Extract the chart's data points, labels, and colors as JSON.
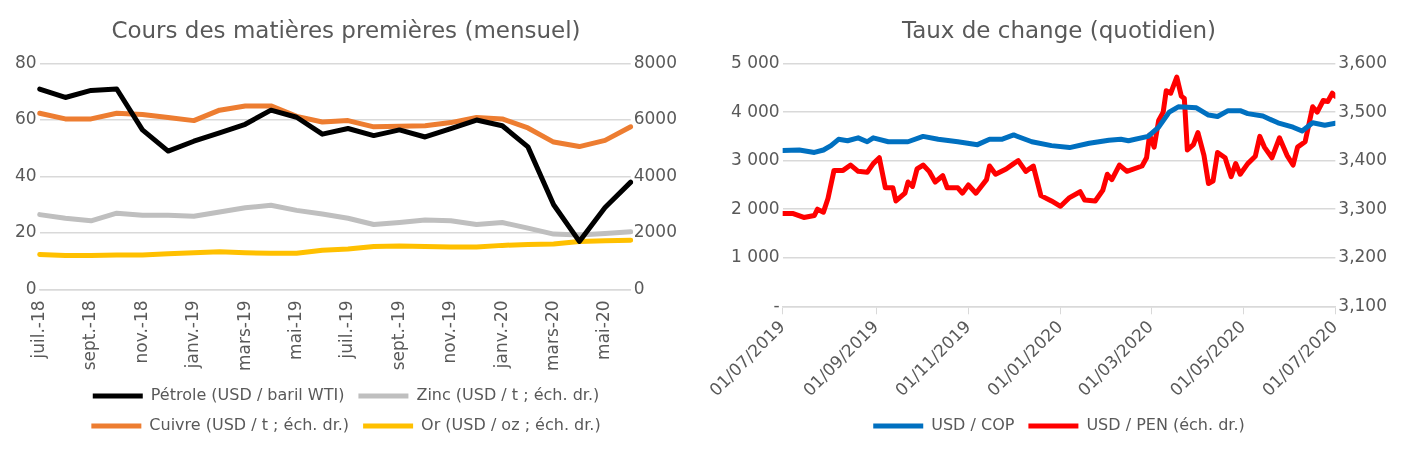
{
  "chart_data": [
    {
      "type": "line",
      "title": "Cours des matières premières (mensuel)",
      "categories": [
        "juil.-18",
        null,
        "sept.-18",
        null,
        "nov.-18",
        null,
        "janv.-19",
        null,
        "mars-19",
        null,
        "mai-19",
        null,
        "juil.-19",
        null,
        "sept.-19",
        null,
        "nov.-19",
        null,
        "janv.-20",
        null,
        "mars-20",
        null,
        "mai-20",
        null
      ],
      "series": [
        {
          "name": "Pétrole (USD / baril WTI)",
          "color": "#000000",
          "values": [
            71,
            68,
            70.5,
            71,
            56.5,
            49,
            52.5,
            55.5,
            58.5,
            63.5,
            61,
            55,
            57,
            54.5,
            56.5,
            54,
            57,
            60,
            58,
            50.5,
            30,
            17,
            29,
            38
          ]
        },
        {
          "name": "Zinc (USD / t ; éch. dr.)",
          "color": "#bfbfbf",
          "axis": "y2",
          "values": [
            2650,
            2520,
            2430,
            2700,
            2630,
            2630,
            2590,
            2740,
            2890,
            2980,
            2800,
            2670,
            2520,
            2300,
            2370,
            2460,
            2430,
            2300,
            2370,
            2170,
            1960,
            1930,
            1980,
            2040
          ]
        },
        {
          "name": "Cuivre (USD / t ; éch. dr.)",
          "color": "#ed7d31",
          "axis": "y2",
          "values": [
            6240,
            6040,
            6040,
            6240,
            6200,
            6090,
            5980,
            6350,
            6500,
            6500,
            6130,
            5930,
            5980,
            5760,
            5780,
            5800,
            5910,
            6090,
            6040,
            5720,
            5220,
            5060,
            5280,
            5760
          ]
        },
        {
          "name": "Or (USD / oz ; éch. dr.)",
          "color": "#ffc000",
          "axis": "y2",
          "values": [
            1240,
            1200,
            1200,
            1220,
            1220,
            1260,
            1300,
            1330,
            1300,
            1280,
            1280,
            1390,
            1430,
            1520,
            1540,
            1520,
            1500,
            1500,
            1560,
            1590,
            1610,
            1700,
            1720,
            1740
          ]
        }
      ],
      "ylim": [
        0,
        80
      ],
      "yticks": [
        0,
        20,
        40,
        60,
        80
      ],
      "y2lim": [
        0,
        8000
      ],
      "y2ticks": [
        0,
        2000,
        4000,
        6000,
        8000
      ],
      "grid": "y",
      "legend": "bottom",
      "marker": "none"
    },
    {
      "type": "line",
      "title": "Taux de change (quotidien)",
      "series": [
        {
          "name": "USD / COP",
          "color": "#0070c0",
          "x": [
            "2019-07-01",
            "2019-07-12",
            "2019-07-22",
            "2019-07-28",
            "2019-08-02",
            "2019-08-07",
            "2019-08-13",
            "2019-08-20",
            "2019-08-26",
            "2019-08-30",
            "2019-09-09",
            "2019-09-22",
            "2019-10-02",
            "2019-10-12",
            "2019-10-25",
            "2019-11-07",
            "2019-11-15",
            "2019-11-23",
            "2019-12-01",
            "2019-12-13",
            "2019-12-26",
            "2020-01-07",
            "2020-01-20",
            "2020-02-02",
            "2020-02-10",
            "2020-02-15",
            "2020-02-28",
            "2020-03-06",
            "2020-03-13",
            "2020-03-19",
            "2020-03-31",
            "2020-04-08",
            "2020-04-14",
            "2020-04-21",
            "2020-04-29",
            "2020-05-04",
            "2020-05-14",
            "2020-05-24",
            "2020-06-03",
            "2020-06-09",
            "2020-06-16",
            "2020-06-24",
            "2020-07-01"
          ],
          "values": [
            3210,
            3220,
            3170,
            3220,
            3310,
            3440,
            3410,
            3470,
            3390,
            3470,
            3390,
            3390,
            3500,
            3440,
            3390,
            3330,
            3440,
            3440,
            3530,
            3390,
            3310,
            3270,
            3360,
            3420,
            3440,
            3410,
            3500,
            3690,
            4000,
            4110,
            4090,
            3940,
            3910,
            4030,
            4030,
            3970,
            3920,
            3780,
            3690,
            3610,
            3780,
            3730,
            3770
          ]
        },
        {
          "name": "USD / PEN (éch. dr.)",
          "color": "#ff0000",
          "axis": "y2",
          "x": [
            "2019-07-01",
            "2019-07-08",
            "2019-07-15",
            "2019-07-22",
            "2019-07-24",
            "2019-07-28",
            "2019-07-31",
            "2019-08-04",
            "2019-08-10",
            "2019-08-15",
            "2019-08-20",
            "2019-08-26",
            "2019-08-30",
            "2019-09-03",
            "2019-09-07",
            "2019-09-12",
            "2019-09-14",
            "2019-09-20",
            "2019-09-22",
            "2019-09-25",
            "2019-09-28",
            "2019-10-02",
            "2019-10-06",
            "2019-10-10",
            "2019-10-15",
            "2019-10-18",
            "2019-10-25",
            "2019-10-28",
            "2019-11-01",
            "2019-11-06",
            "2019-11-13",
            "2019-11-15",
            "2019-11-19",
            "2019-11-26",
            "2019-12-01",
            "2019-12-04",
            "2019-12-09",
            "2019-12-14",
            "2019-12-19",
            "2019-12-26",
            "2020-01-01",
            "2020-01-07",
            "2020-01-14",
            "2020-01-17",
            "2020-01-24",
            "2020-01-29",
            "2020-02-01",
            "2020-02-04",
            "2020-02-09",
            "2020-02-14",
            "2020-02-24",
            "2020-02-27",
            "2020-02-29",
            "2020-03-03",
            "2020-03-06",
            "2020-03-09",
            "2020-03-11",
            "2020-03-14",
            "2020-03-18",
            "2020-03-21",
            "2020-03-23",
            "2020-03-25",
            "2020-03-29",
            "2020-04-01",
            "2020-04-05",
            "2020-04-08",
            "2020-04-11",
            "2020-04-14",
            "2020-04-19",
            "2020-04-23",
            "2020-04-26",
            "2020-04-29",
            "2020-05-04",
            "2020-05-09",
            "2020-05-12",
            "2020-05-15",
            "2020-05-20",
            "2020-05-25",
            "2020-05-30",
            "2020-06-03",
            "2020-06-06",
            "2020-06-11",
            "2020-06-16",
            "2020-06-19",
            "2020-06-23",
            "2020-06-26",
            "2020-06-29",
            "2020-07-01"
          ],
          "values": [
            3291,
            3291,
            3283,
            3287,
            3300,
            3294,
            3322,
            3380,
            3380,
            3391,
            3378,
            3376,
            3394,
            3406,
            3344,
            3344,
            3317,
            3333,
            3356,
            3347,
            3383,
            3391,
            3378,
            3356,
            3369,
            3344,
            3344,
            3333,
            3350,
            3333,
            3361,
            3389,
            3372,
            3383,
            3394,
            3400,
            3378,
            3389,
            3328,
            3317,
            3306,
            3324,
            3336,
            3319,
            3317,
            3339,
            3372,
            3361,
            3391,
            3378,
            3389,
            3406,
            3453,
            3428,
            3483,
            3500,
            3544,
            3539,
            3572,
            3533,
            3528,
            3422,
            3433,
            3458,
            3411,
            3353,
            3358,
            3417,
            3406,
            3367,
            3394,
            3372,
            3394,
            3409,
            3450,
            3428,
            3406,
            3447,
            3411,
            3391,
            3428,
            3439,
            3511,
            3500,
            3524,
            3522,
            3539,
            3533
          ]
        }
      ],
      "xlim": [
        "2019-07-01",
        "2020-07-01"
      ],
      "xticks": [
        {
          "value": "2019-07-01",
          "label": "01/07/2019"
        },
        {
          "value": "2019-09-01",
          "label": "01/09/2019"
        },
        {
          "value": "2019-11-01",
          "label": "01/11/2019"
        },
        {
          "value": "2020-01-01",
          "label": "01/01/2020"
        },
        {
          "value": "2020-03-01",
          "label": "01/03/2020"
        },
        {
          "value": "2020-05-01",
          "label": "01/05/2020"
        },
        {
          "value": "2020-07-01",
          "label": "01/07/2020"
        }
      ],
      "ylim": [
        0,
        5000
      ],
      "yticks": [
        {
          "value": 0,
          "label": "-"
        },
        {
          "value": 1000,
          "label": "1 000"
        },
        {
          "value": 2000,
          "label": "2 000"
        },
        {
          "value": 3000,
          "label": "3 000"
        },
        {
          "value": 4000,
          "label": "4 000"
        },
        {
          "value": 5000,
          "label": "5 000"
        }
      ],
      "y2lim": [
        3100,
        3600
      ],
      "y2ticks": [
        {
          "value": 3100,
          "label": "3,100"
        },
        {
          "value": 3200,
          "label": "3,200"
        },
        {
          "value": 3300,
          "label": "3,300"
        },
        {
          "value": 3400,
          "label": "3,400"
        },
        {
          "value": 3500,
          "label": "3,500"
        },
        {
          "value": 3600,
          "label": "3,600"
        }
      ],
      "grid": "y",
      "legend": "bottom",
      "marker": "none"
    }
  ]
}
